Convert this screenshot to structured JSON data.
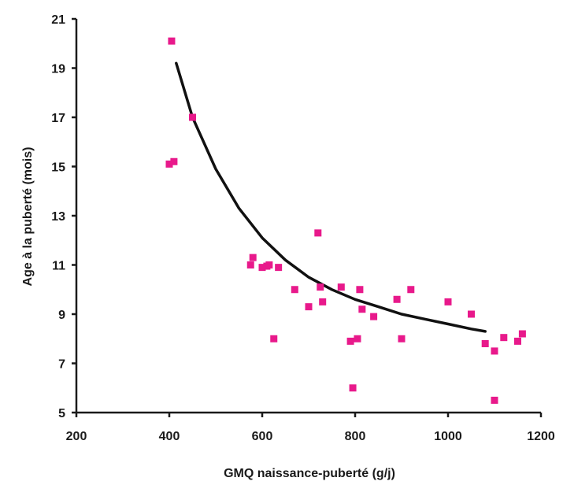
{
  "chart_data": {
    "type": "scatter",
    "title": "",
    "xlabel": "GMQ naissance-puberté (g/j)",
    "ylabel": "Age  à la puberté (mois)",
    "xlim": [
      200,
      1200
    ],
    "ylim": [
      5,
      21
    ],
    "xticks": [
      "200",
      "400",
      "600",
      "800",
      "1000",
      "1200"
    ],
    "yticks": [
      "5",
      "7",
      "9",
      "11",
      "13",
      "15",
      "17",
      "19",
      "21"
    ],
    "grid": false,
    "legend": "none",
    "colors": {
      "points": "#e8198b",
      "curve": "#111111",
      "axis": "#1a1a1a"
    },
    "series": [
      {
        "kind": "points",
        "points": [
          [
            405,
            20.1
          ],
          [
            450,
            17.0
          ],
          [
            400,
            15.1
          ],
          [
            410,
            15.2
          ],
          [
            575,
            11.0
          ],
          [
            580,
            11.3
          ],
          [
            600,
            10.9
          ],
          [
            610,
            10.95
          ],
          [
            615,
            11.0
          ],
          [
            635,
            10.9
          ],
          [
            625,
            8.0
          ],
          [
            670,
            10.0
          ],
          [
            700,
            9.3
          ],
          [
            720,
            12.3
          ],
          [
            725,
            10.1
          ],
          [
            730,
            9.5
          ],
          [
            770,
            10.1
          ],
          [
            790,
            7.9
          ],
          [
            795,
            6.0
          ],
          [
            805,
            8.0
          ],
          [
            810,
            10.0
          ],
          [
            815,
            9.2
          ],
          [
            840,
            8.9
          ],
          [
            890,
            9.6
          ],
          [
            900,
            8.0
          ],
          [
            920,
            10.0
          ],
          [
            1000,
            9.5
          ],
          [
            1050,
            9.0
          ],
          [
            1080,
            7.8
          ],
          [
            1100,
            7.5
          ],
          [
            1100,
            5.5
          ],
          [
            1120,
            8.05
          ],
          [
            1150,
            7.9
          ],
          [
            1160,
            8.2
          ]
        ]
      },
      {
        "kind": "trend",
        "points": [
          [
            415,
            19.2
          ],
          [
            450,
            17.0
          ],
          [
            500,
            14.9
          ],
          [
            550,
            13.3
          ],
          [
            600,
            12.1
          ],
          [
            650,
            11.2
          ],
          [
            700,
            10.5
          ],
          [
            750,
            10.0
          ],
          [
            800,
            9.6
          ],
          [
            850,
            9.3
          ],
          [
            900,
            9.0
          ],
          [
            950,
            8.8
          ],
          [
            1000,
            8.6
          ],
          [
            1050,
            8.4
          ],
          [
            1080,
            8.3
          ]
        ]
      }
    ]
  }
}
